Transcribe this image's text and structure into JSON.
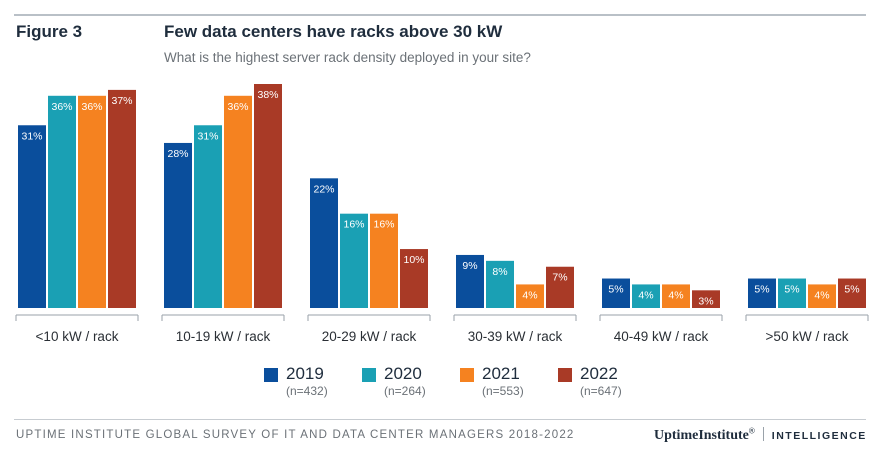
{
  "header": {
    "figure_label": "Figure 3",
    "title": "Few data centers have racks above 30 kW",
    "subtitle": "What is the highest server rack density deployed in your site?"
  },
  "chart_data": {
    "type": "bar",
    "title": "Few data centers have racks above 30 kW",
    "subtitle": "What is the highest server rack density deployed in your site?",
    "categories": [
      "<10 kW / rack",
      "10-19 kW / rack",
      "20-29 kW / rack",
      "30-39 kW / rack",
      "40-49 kW / rack",
      ">50 kW / rack"
    ],
    "series": [
      {
        "name": "2019",
        "n": "(n=432)",
        "color": "#0a4e9c",
        "values": [
          31,
          28,
          22,
          9,
          5,
          5
        ]
      },
      {
        "name": "2020",
        "n": "(n=264)",
        "color": "#1aa0b4",
        "values": [
          36,
          31,
          16,
          8,
          4,
          5
        ]
      },
      {
        "name": "2021",
        "n": "(n=553)",
        "color": "#f58220",
        "values": [
          36,
          36,
          16,
          4,
          4,
          4
        ]
      },
      {
        "name": "2022",
        "n": "(n=647)",
        "color": "#a93a26",
        "values": [
          37,
          38,
          10,
          7,
          3,
          5
        ]
      }
    ],
    "value_suffix": "%",
    "ylim": [
      0,
      38
    ],
    "grid": false,
    "legend": "bottom-center"
  },
  "footer": {
    "source": "UPTIME INSTITUTE GLOBAL SURVEY OF IT AND DATA CENTER MANAGERS 2018-2022",
    "brand_name": "UptimeInstitute",
    "brand_mark": "®",
    "brand_unit": "INTELLIGENCE"
  }
}
